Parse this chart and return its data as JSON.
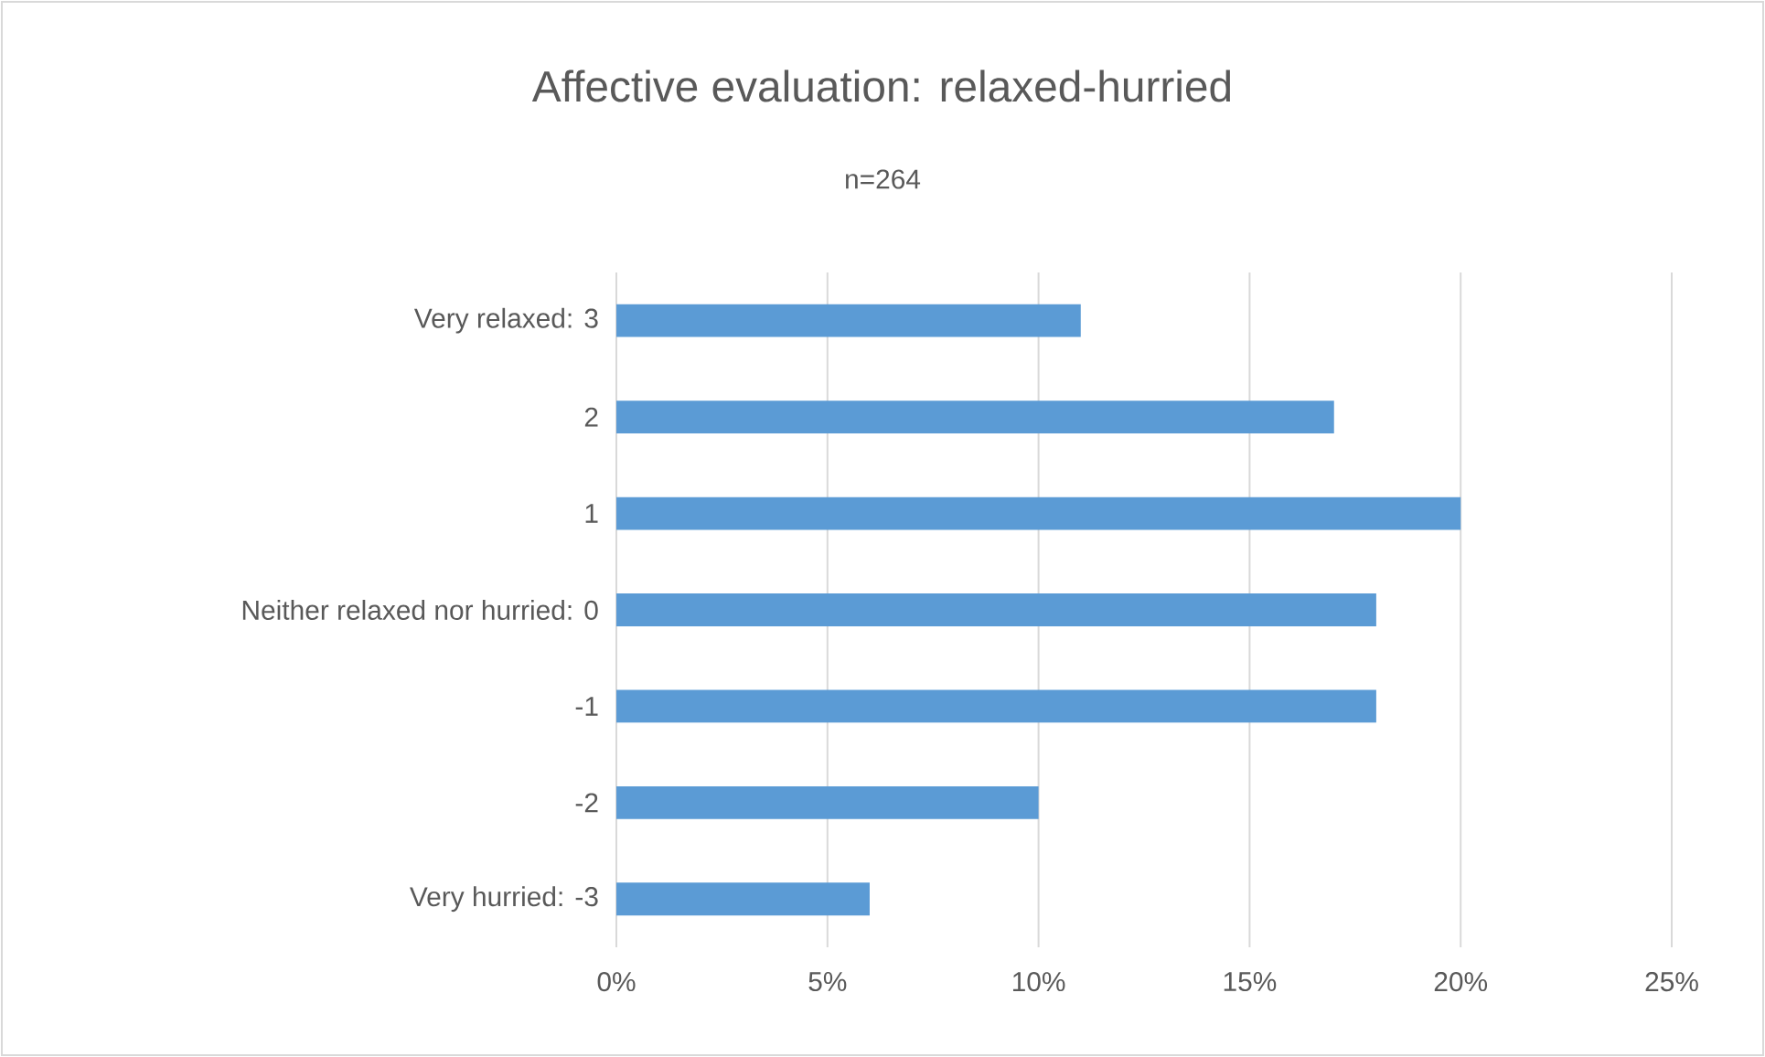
{
  "chart_data": {
    "type": "bar",
    "orientation": "horizontal",
    "title": "Affective evaluation: relaxed-hurried",
    "subtitle": "n=264",
    "categories": [
      "Very relaxed: 3",
      "2",
      "1",
      "Neither relaxed nor hurried: 0",
      "-1",
      "-2",
      "Very hurried: -3"
    ],
    "values": [
      11,
      17,
      20,
      18,
      18,
      10,
      6
    ],
    "color": "#5b9bd5",
    "xlim": [
      0,
      25
    ],
    "xticks": [
      {
        "value": 0,
        "label": "0%"
      },
      {
        "value": 5,
        "label": "5%"
      },
      {
        "value": 10,
        "label": "10%"
      },
      {
        "value": 15,
        "label": "15%"
      },
      {
        "value": 20,
        "label": "20%"
      },
      {
        "value": 25,
        "label": "25%"
      }
    ],
    "grid": "x"
  }
}
